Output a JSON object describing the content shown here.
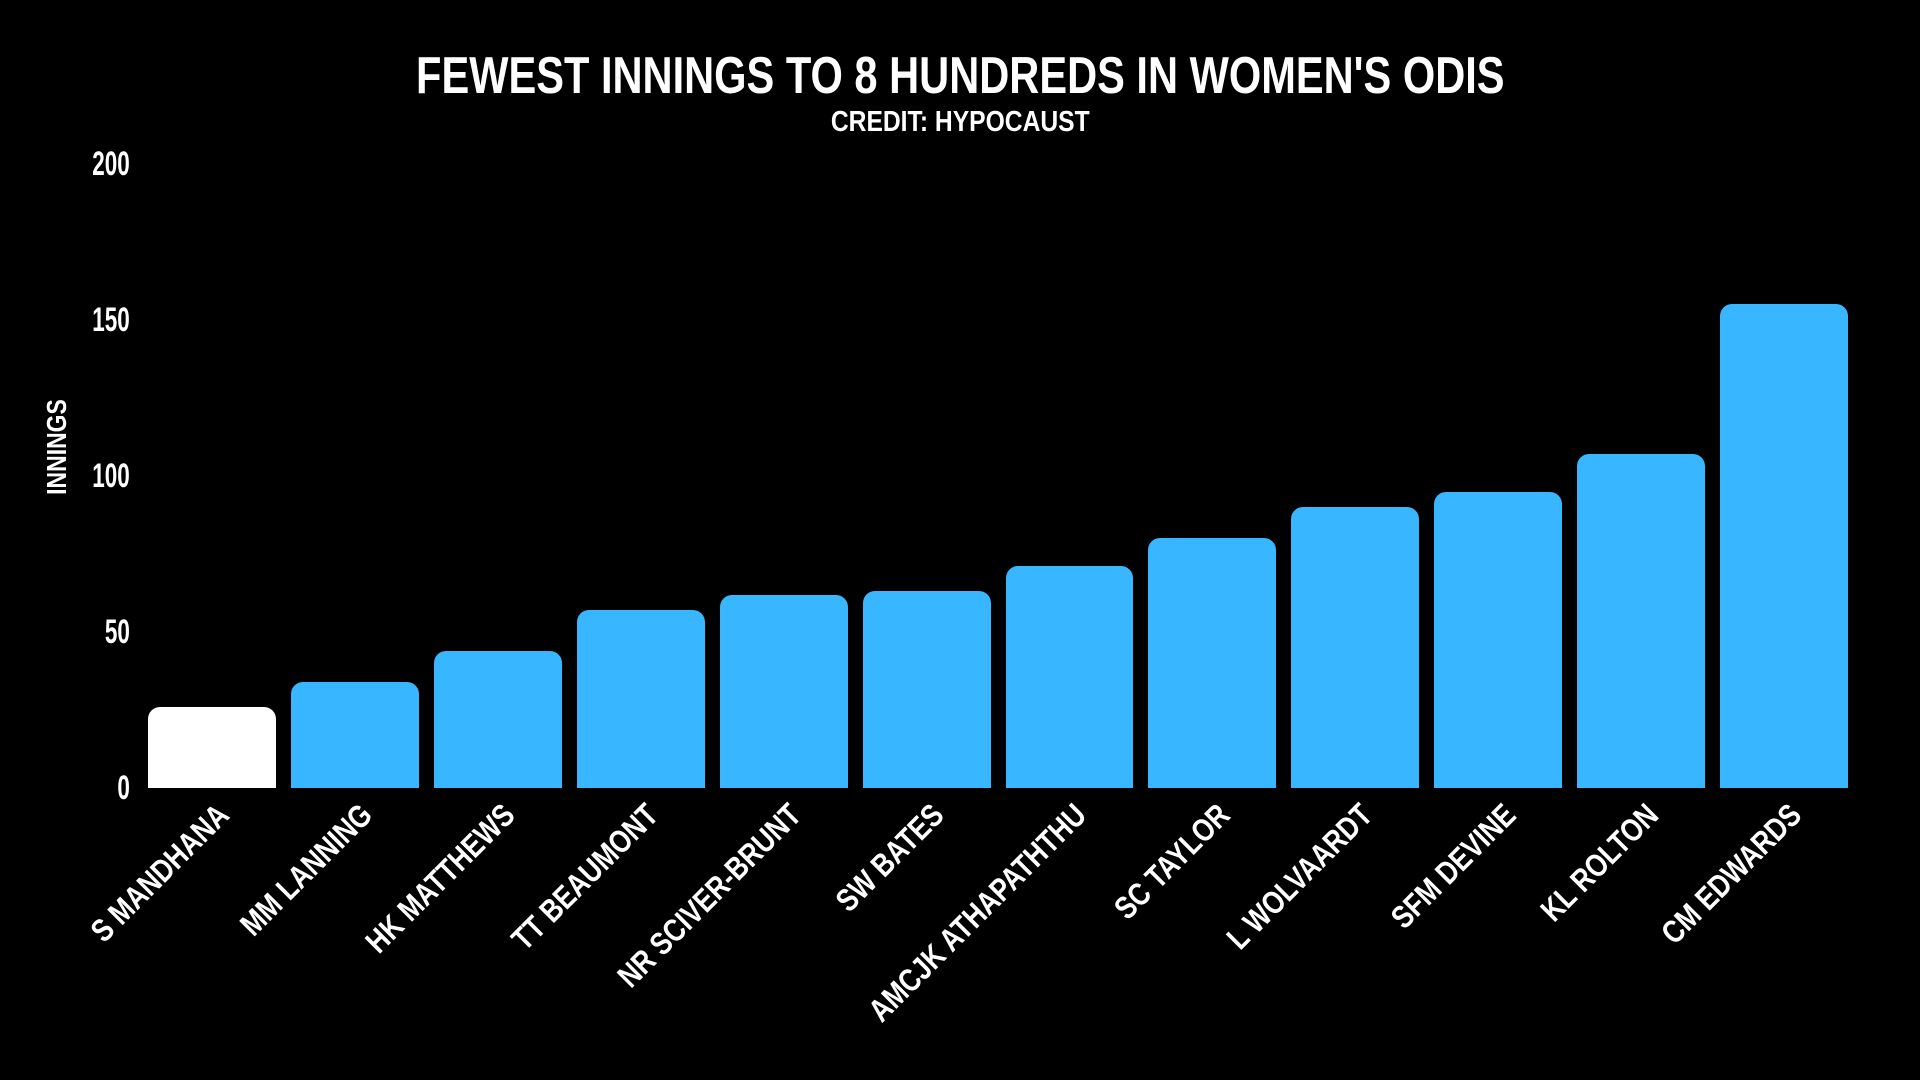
{
  "chart_data": {
    "type": "bar",
    "title": "FEWEST INNINGS TO 8 HUNDREDS IN WOMEN'S ODIS",
    "subtitle": "CREDIT: HYPOCAUST",
    "ylabel": "INNINGS",
    "xlabel": "",
    "ylim": [
      0,
      200
    ],
    "yticks": [
      0,
      50,
      100,
      150,
      200
    ],
    "grid": false,
    "legend_position": "none",
    "categories": [
      "S MANDHANA",
      "MM LANNING",
      "HK MATTHEWS",
      "TT BEAUMONT",
      "NR SCIVER-BRUNT",
      "SW BATES",
      "AMCJK ATHAPATHTHU",
      "SC TAYLOR",
      "L WOLVAARDT",
      "SFM DEVINE",
      "KL ROLTON",
      "CM EDWARDS"
    ],
    "values": [
      26,
      34,
      44,
      57,
      62,
      63,
      71,
      80,
      90,
      95,
      107,
      155
    ],
    "highlight_index": 0,
    "colors": {
      "bar_default": "#38b6ff",
      "bar_highlight": "#ffffff",
      "background": "#000000",
      "text": "#ffffff"
    }
  }
}
